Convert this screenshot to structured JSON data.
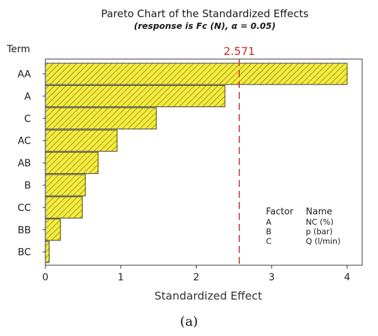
{
  "chart_data": {
    "type": "bar",
    "orientation": "horizontal",
    "title": "Pareto Chart of the Standardized Effects",
    "subtitle": "(response is Fc (N), α = 0.05)",
    "term_header": "Term",
    "xlabel": "Standardized Effect",
    "categories": [
      "AA",
      "A",
      "C",
      "AC",
      "AB",
      "B",
      "CC",
      "BB",
      "BC"
    ],
    "values": [
      4.0,
      2.38,
      1.47,
      0.95,
      0.7,
      0.53,
      0.49,
      0.2,
      0.05
    ],
    "xlim": [
      0,
      4.2
    ],
    "xticks": [
      "0",
      "1",
      "2",
      "3",
      "4"
    ],
    "reference_line": {
      "value": 2.571,
      "label": "2.571",
      "color": "#d62728"
    },
    "bar_fill": "#f5ec3b",
    "bar_stroke": "#3a3a3a",
    "legend": {
      "headers": [
        "Factor",
        "Name"
      ],
      "rows": [
        [
          "A",
          "NC (%)"
        ],
        [
          "B",
          "p (bar)"
        ],
        [
          "C",
          "Q (l/min)"
        ]
      ],
      "placement": "bottom-right"
    },
    "caption": "(a)",
    "grid": false
  }
}
